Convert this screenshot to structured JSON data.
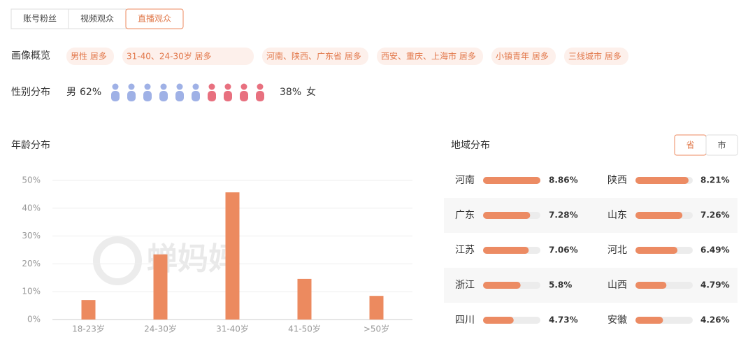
{
  "tabs": [
    "账号粉丝",
    "视频观众",
    "直播观众"
  ],
  "active_tab": 2,
  "overview": {
    "label": "画像概览",
    "tags": [
      "男性 居多",
      "31-40、24-30岁 居多",
      "河南、陕西、广东省 居多",
      "西安、重庆、上海市 居多",
      "小镇青年 居多",
      "三线城市 居多"
    ]
  },
  "gender": {
    "label": "性别分布",
    "male": {
      "name": "男",
      "value": 62,
      "value_label": "62%",
      "color": "#9fb1e6"
    },
    "female": {
      "name": "女",
      "value": 38,
      "value_label": "38%",
      "color": "#e8707f"
    }
  },
  "chart_data": {
    "type": "bar",
    "title": "年龄分布",
    "categories": [
      "18-23岁",
      "24-30岁",
      "31-40岁",
      "41-50岁",
      ">50岁"
    ],
    "values": [
      7.0,
      23.4,
      45.7,
      14.6,
      8.5
    ],
    "color": "#ec8a5f",
    "ylim": [
      0,
      50
    ],
    "yticks": [
      {
        "value": 0,
        "label": "0%"
      },
      {
        "value": 10,
        "label": "10%"
      },
      {
        "value": 20,
        "label": "20%"
      },
      {
        "value": 30,
        "label": "30%"
      },
      {
        "value": 40,
        "label": "40%"
      },
      {
        "value": 50,
        "label": "50%"
      }
    ],
    "grid": true,
    "watermark": "蝉妈妈"
  },
  "region": {
    "title": "地域分布",
    "toggle": [
      "省",
      "市"
    ],
    "active_toggle": 0,
    "color": "#ec8b63",
    "items": [
      {
        "name": "河南",
        "value": 8.86,
        "label": "8.86%"
      },
      {
        "name": "陕西",
        "value": 8.21,
        "label": "8.21%"
      },
      {
        "name": "广东",
        "value": 7.28,
        "label": "7.28%"
      },
      {
        "name": "山东",
        "value": 7.26,
        "label": "7.26%"
      },
      {
        "name": "江苏",
        "value": 7.06,
        "label": "7.06%"
      },
      {
        "name": "河北",
        "value": 6.49,
        "label": "6.49%"
      },
      {
        "name": "浙江",
        "value": 5.8,
        "label": "5.8%"
      },
      {
        "name": "山西",
        "value": 4.79,
        "label": "4.79%"
      },
      {
        "name": "四川",
        "value": 4.73,
        "label": "4.73%"
      },
      {
        "name": "安徽",
        "value": 4.26,
        "label": "4.26%"
      }
    ]
  }
}
